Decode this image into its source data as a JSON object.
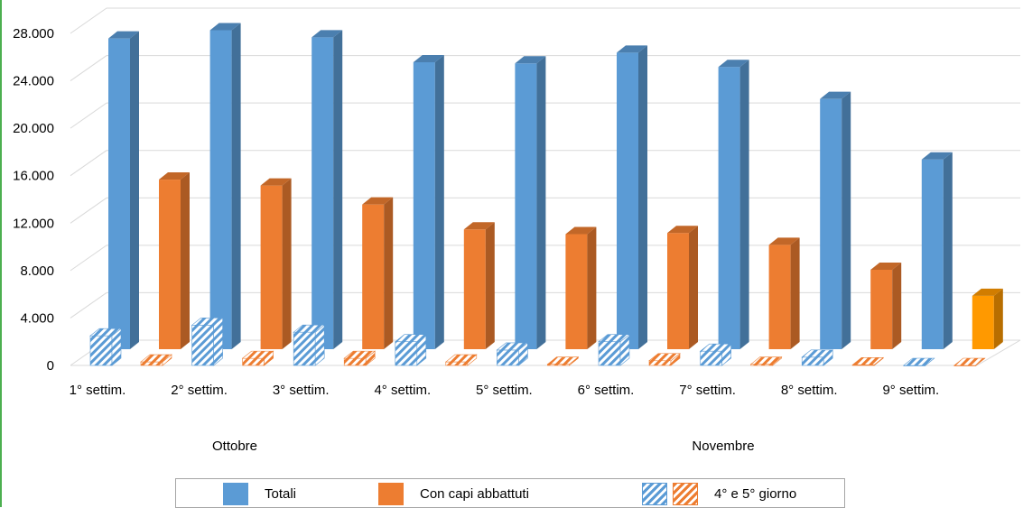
{
  "chart_data": {
    "type": "bar",
    "categories": [
      "1° settim.",
      "2° settim.",
      "3° settim.",
      "4° settim.",
      "5° settim.",
      "6° settim.",
      "7° settim.",
      "8° settim.",
      "9° settim."
    ],
    "groups": [
      {
        "label": "Ottobre"
      },
      {
        "label": "Novembre"
      }
    ],
    "series": [
      {
        "name": "Totali",
        "values": [
          26200,
          26900,
          26300,
          24200,
          24100,
          25000,
          23800,
          21100,
          16000
        ],
        "color": "#5b9bd5"
      },
      {
        "name": "Con capi abbattuti",
        "values": [
          14300,
          13800,
          12200,
          10100,
          9700,
          9800,
          8800,
          6700,
          4500
        ],
        "color": "#ed7d31"
      },
      {
        "name": "4° e 5° giorno",
        "values": [
          2500,
          3400,
          2800,
          2000,
          1300,
          2000,
          1200,
          700,
          0
        ],
        "color": "#5b9bd5",
        "pattern": "hatch"
      },
      {
        "name": "4° e 5° giorno",
        "values": [
          300,
          600,
          600,
          300,
          100,
          400,
          100,
          50,
          0
        ],
        "color": "#ed7d31",
        "pattern": "hatch"
      }
    ],
    "ylim": [
      0,
      28000
    ],
    "y_ticks": [
      "0",
      "4.000",
      "8.000",
      "12.000",
      "16.000",
      "20.000",
      "24.000",
      "28.000"
    ],
    "legend_position": "bottom",
    "grid": true,
    "title": "",
    "xlabel": "",
    "ylabel": ""
  },
  "legend": {
    "totali": "Totali",
    "con_capi": "Con capi abbattuti",
    "quarto_quinto": "4° e 5° giorno"
  }
}
